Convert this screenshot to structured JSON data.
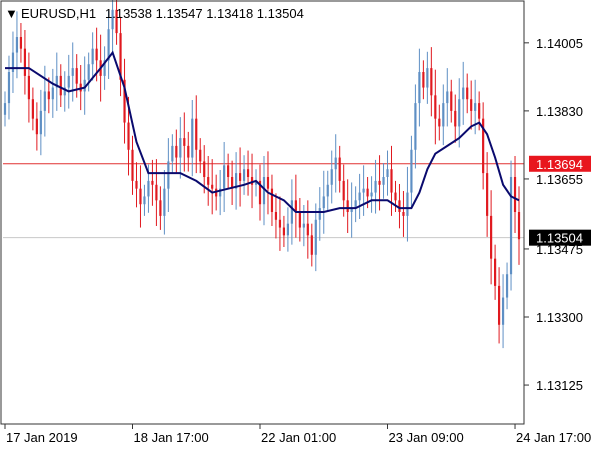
{
  "header": {
    "menu_glyph": "▼",
    "symbol": "EURUSD,H1",
    "ohlc": "1.13538 1.13547 1.13418 1.13504"
  },
  "colors": {
    "bull": "#5e8fc4",
    "bear": "#e0191f",
    "ma": "#0a0a6e",
    "axis": "#333333",
    "level_line": "#e03030",
    "bid_line": "#c8c8c8",
    "level_badge_bg": "#e8161e",
    "price_badge_bg": "#000000",
    "badge_text": "#ffffff"
  },
  "chart_data": {
    "type": "candlestick",
    "symbol": "EURUSD",
    "timeframe": "H1",
    "ylim": [
      1.1303,
      1.1411
    ],
    "y_ticks": [
      "1.14005",
      "1.13830",
      "1.13655",
      "1.13475",
      "1.13300",
      "1.13125"
    ],
    "x_ticks": [
      "17 Jan 2019",
      "18 Jan 17:00",
      "22 Jan 01:00",
      "23 Jan 09:00",
      "24 Jan 17:00"
    ],
    "x_tick_bars": [
      0,
      32,
      64,
      96,
      128
    ],
    "level_line": 1.13694,
    "level_label": "1.13694",
    "current_price": 1.13504,
    "current_price_label": "1.13504",
    "closes": [
      1.1385,
      1.1393,
      1.1398,
      1.1402,
      1.1399,
      1.1392,
      1.1386,
      1.1381,
      1.1377,
      1.1383,
      1.1388,
      1.1386,
      1.1389,
      1.1392,
      1.1387,
      1.1389,
      1.1392,
      1.1394,
      1.139,
      1.1388,
      1.1391,
      1.1395,
      1.1399,
      1.1396,
      1.1392,
      1.1396,
      1.1404,
      1.1409,
      1.1403,
      1.1391,
      1.138,
      1.1373,
      1.1365,
      1.1363,
      1.1359,
      1.1361,
      1.1365,
      1.1364,
      1.136,
      1.1356,
      1.1363,
      1.137,
      1.1374,
      1.1371,
      1.1376,
      1.1374,
      1.1371,
      1.1381,
      1.1373,
      1.137,
      1.1366,
      1.1364,
      1.1363,
      1.1361,
      1.1363,
      1.1369,
      1.1366,
      1.1363,
      1.1367,
      1.1365,
      1.1368,
      1.1366,
      1.1364,
      1.1365,
      1.1359,
      1.1366,
      1.1363,
      1.1357,
      1.1355,
      1.1353,
      1.1351,
      1.1354,
      1.136,
      1.1357,
      1.1353,
      1.1354,
      1.1351,
      1.1346,
      1.1355,
      1.1358,
      1.1361,
      1.1364,
      1.1368,
      1.1371,
      1.1365,
      1.136,
      1.1357,
      1.1358,
      1.136,
      1.1362,
      1.1363,
      1.1361,
      1.1362,
      1.1365,
      1.1364,
      1.1366,
      1.1368,
      1.1362,
      1.136,
      1.1357,
      1.1356,
      1.1362,
      1.1373,
      1.1385,
      1.1393,
      1.1389,
      1.1394,
      1.1387,
      1.1381,
      1.1379,
      1.1385,
      1.1388,
      1.1383,
      1.1379,
      1.1386,
      1.1389,
      1.1386,
      1.1383,
      1.1385,
      1.1381,
      1.1367,
      1.1356,
      1.1345,
      1.1338,
      1.1328,
      1.1335,
      1.1341,
      1.1366,
      1.1357,
      1.135
    ],
    "ma_points": [
      [
        0,
        1.1394
      ],
      [
        6,
        1.1394
      ],
      [
        12,
        1.139
      ],
      [
        16,
        1.1388
      ],
      [
        20,
        1.1389
      ],
      [
        24,
        1.1394
      ],
      [
        27,
        1.1398
      ],
      [
        30,
        1.1389
      ],
      [
        33,
        1.1375
      ],
      [
        36,
        1.1367
      ],
      [
        40,
        1.1367
      ],
      [
        44,
        1.1367
      ],
      [
        48,
        1.1365
      ],
      [
        52,
        1.1362
      ],
      [
        56,
        1.1363
      ],
      [
        60,
        1.1364
      ],
      [
        63,
        1.1365
      ],
      [
        66,
        1.1362
      ],
      [
        70,
        1.136
      ],
      [
        73,
        1.1357
      ],
      [
        76,
        1.1357
      ],
      [
        80,
        1.1357
      ],
      [
        84,
        1.1358
      ],
      [
        88,
        1.1358
      ],
      [
        92,
        1.136
      ],
      [
        96,
        1.136
      ],
      [
        99,
        1.1358
      ],
      [
        102,
        1.1358
      ],
      [
        104,
        1.1362
      ],
      [
        106,
        1.1368
      ],
      [
        108,
        1.1372
      ],
      [
        111,
        1.1374
      ],
      [
        114,
        1.1376
      ],
      [
        117,
        1.1379
      ],
      [
        119,
        1.138
      ],
      [
        121,
        1.1377
      ],
      [
        123,
        1.1371
      ],
      [
        125,
        1.1364
      ],
      [
        127,
        1.1361
      ],
      [
        129,
        1.136
      ]
    ]
  }
}
